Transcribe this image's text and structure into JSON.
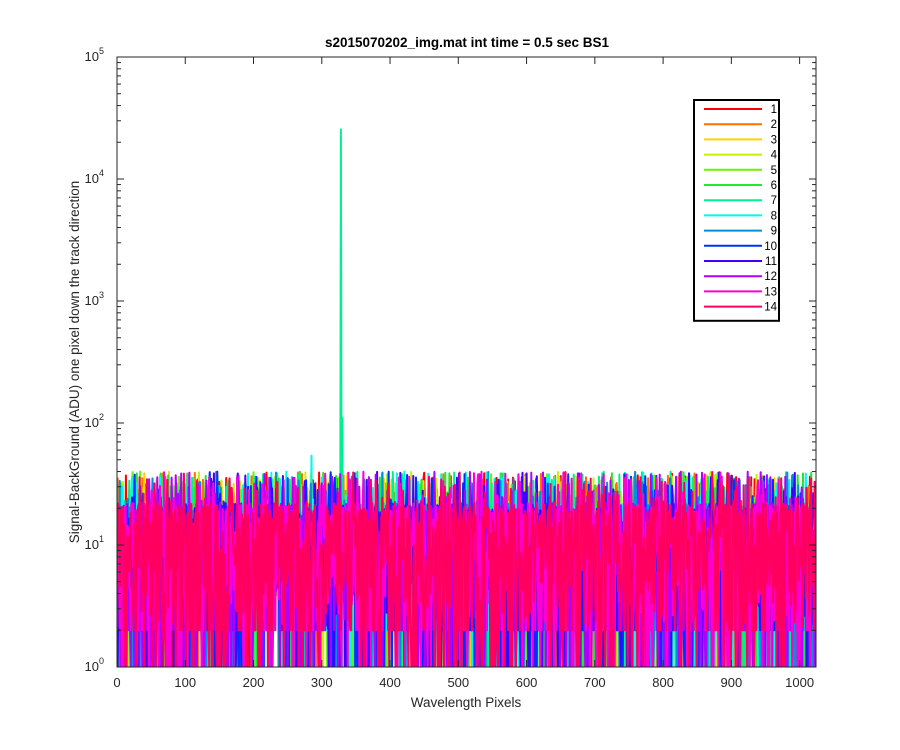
{
  "chart_data": {
    "type": "line",
    "title": "s2015070202_img.mat int time = 0.5 sec   BS1",
    "xlabel": "Wavelength Pixels",
    "ylabel": "Signal-BackGround (ADU) one pixel down the track direction",
    "xlim": [
      0,
      1024
    ],
    "ylim": [
      1,
      100000
    ],
    "yscale": "log",
    "grid": false,
    "legend_position": "top-right",
    "x_ticks": [
      "0",
      "100",
      "200",
      "300",
      "400",
      "500",
      "600",
      "700",
      "800",
      "900",
      "1000"
    ],
    "y_ticks": [
      {
        "base": "10",
        "exp": "0"
      },
      {
        "base": "10",
        "exp": "1"
      },
      {
        "base": "10",
        "exp": "2"
      },
      {
        "base": "10",
        "exp": "3"
      },
      {
        "base": "10",
        "exp": "4"
      },
      {
        "base": "10",
        "exp": "5"
      }
    ],
    "noise_band": {
      "x_range": [
        0,
        1024
      ],
      "y_range": [
        1,
        40
      ],
      "note_values": "per-pixel values fluctuate between 1 and ~40 ADU for every series"
    },
    "series": [
      {
        "name": "1",
        "color": "#ff0000"
      },
      {
        "name": "2",
        "color": "#ff7000"
      },
      {
        "name": "3",
        "color": "#ffd000"
      },
      {
        "name": "4",
        "color": "#c8f000"
      },
      {
        "name": "5",
        "color": "#70f000"
      },
      {
        "name": "6",
        "color": "#20e830"
      },
      {
        "name": "7",
        "color": "#00f090",
        "peaks": [
          {
            "x": 325,
            "y": 3
          },
          {
            "x": 328,
            "y": 25500
          },
          {
            "x": 330,
            "y": 110
          },
          {
            "x": 335,
            "y": 20
          }
        ]
      },
      {
        "name": "8",
        "color": "#00f8f0",
        "peaks": [
          {
            "x": 285,
            "y": 54
          }
        ]
      },
      {
        "name": "9",
        "color": "#0090e0"
      },
      {
        "name": "10",
        "color": "#0030ff"
      },
      {
        "name": "11",
        "color": "#4000ff"
      },
      {
        "name": "12",
        "color": "#b000ff"
      },
      {
        "name": "13",
        "color": "#ff00d0"
      },
      {
        "name": "14",
        "color": "#ff0060"
      }
    ]
  }
}
